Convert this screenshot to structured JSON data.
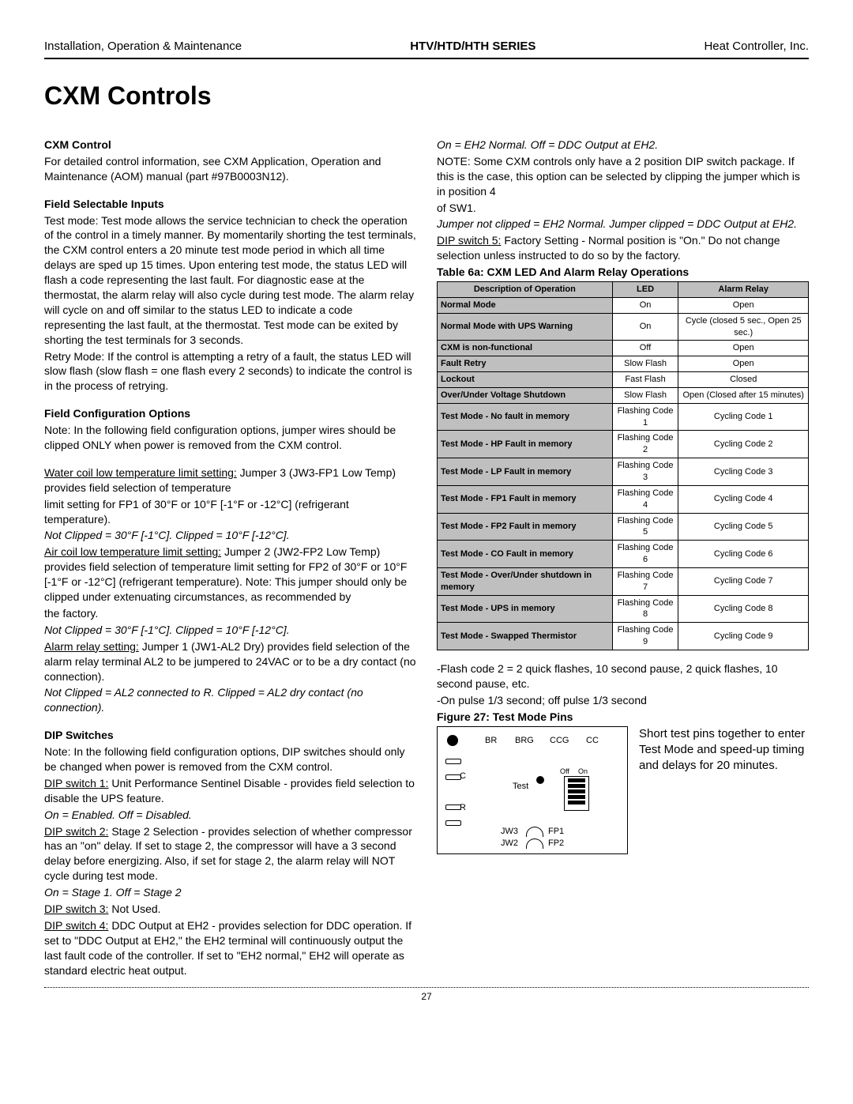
{
  "header": {
    "left": "Installation, Operation & Maintenance",
    "center": "HTV/HTD/HTH SERIES",
    "right": "Heat Controller, Inc."
  },
  "title": "CXM Controls",
  "left_col": {
    "h_cxm": "CXM Control",
    "p_cxm": "For detailed control information, see CXM Application, Operation and Maintenance (AOM) manual (part #97B0003N12).",
    "h_fsi": "Field Selectable Inputs",
    "p_fsi1": "Test mode: Test mode allows the service technician to check the operation of the control in a timely manner. By momentarily shorting the test terminals, the CXM control enters a 20 minute test mode period in which all time delays are sped up 15 times. Upon entering test mode, the status LED will flash a code representing the last fault. For diagnostic ease at the thermostat, the alarm relay will also cycle during test mode. The alarm relay will cycle on and off similar to the status LED to indicate a code representing the last fault, at the thermostat. Test mode can be exited by shorting the test terminals for 3 seconds.",
    "p_fsi2": "Retry Mode: If the control is attempting a retry of a fault, the status LED will slow flash (slow flash = one flash every 2 seconds) to indicate the control is in the process of retrying.",
    "h_fco": "Field Configuration Options",
    "p_fco_note": "Note: In the following field configuration options, jumper wires should be clipped ONLY when power is removed from the CXM control.",
    "p_water_u": "Water coil low temperature limit setting:",
    "p_water_rest": " Jumper 3 (JW3-FP1 Low Temp) provides field selection of temperature",
    "p_water2": "limit setting for FP1 of 30°F or 10°F [-1°F or -12°C] (refrigerant temperature).",
    "p_water_i": "Not Clipped = 30°F [-1°C]. Clipped = 10°F [-12°C].",
    "p_air_u": "Air coil low temperature limit setting:",
    "p_air_rest": " Jumper 2 (JW2-FP2 Low Temp) provides field selection of temperature limit setting for FP2 of 30°F or 10°F [-1°F or -12°C] (refrigerant temperature). Note: This jumper should only be clipped under extenuating circumstances, as recommended by",
    "p_air_fac": "the factory.",
    "p_air_i": "Not Clipped = 30°F [-1°C]. Clipped = 10°F [-12°C].",
    "p_alarm_u": "Alarm relay setting:",
    "p_alarm_rest": " Jumper 1 (JW1-AL2 Dry) provides field selection of the alarm relay terminal AL2 to be jumpered to 24VAC or to be a dry contact (no connection).",
    "p_alarm_i": "Not Clipped = AL2 connected to R. Clipped = AL2 dry contact (no connection).",
    "h_dip": "DIP Switches",
    "p_dip_note": "Note: In the following field configuration options, DIP switches should only be changed when power is removed from the CXM control.",
    "p_dip1_u": "DIP switch 1:",
    "p_dip1_rest": " Unit Performance Sentinel Disable - provides field selection to disable the UPS feature.",
    "p_dip1_i": "On = Enabled. Off = Disabled.",
    "p_dip2_u": "DIP switch 2:",
    "p_dip2_rest": " Stage 2 Selection - provides selection of whether compressor has an \"on\" delay. If set to stage 2, the compressor will have a 3 second delay before energizing. Also, if set for stage 2, the alarm relay will NOT cycle during test mode.",
    "p_dip2_i": "On = Stage 1. Off = Stage 2",
    "p_dip3_u": "DIP switch 3:",
    "p_dip3_rest": " Not Used.",
    "p_dip4_u": "DIP switch 4:",
    "p_dip4_rest": " DDC Output at EH2 - provides selection for DDC operation. If set to \"DDC Output at EH2,\" the EH2 terminal will continuously output the last fault code of the controller. If set to \"EH2 normal,\" EH2 will operate as standard electric heat output."
  },
  "right_col": {
    "p_on_i": "On = EH2 Normal. Off = DDC Output at EH2.",
    "p_note": "NOTE: Some CXM controls only have a 2 position DIP switch package. If this is the case, this option can be selected by clipping the jumper which is in position 4",
    "p_sw1": "of SW1.",
    "p_jumper_i": "Jumper not clipped = EH2 Normal. Jumper clipped = DDC Output at EH2.",
    "p_dip5_u": "DIP switch 5:",
    "p_dip5_rest": " Factory Setting - Normal position is \"On.\" Do not change selection unless instructed to do so by  the factory.",
    "table_title": "Table 6a: CXM LED And Alarm Relay Operations",
    "table": {
      "headers": [
        "Description of Operation",
        "LED",
        "Alarm Relay"
      ],
      "rows": [
        [
          "Normal Mode",
          "On",
          "Open"
        ],
        [
          "Normal Mode with UPS Warning",
          "On",
          "Cycle (closed 5 sec., Open 25 sec.)"
        ],
        [
          "CXM is non-functional",
          "Off",
          "Open"
        ],
        [
          "Fault Retry",
          "Slow Flash",
          "Open"
        ],
        [
          "Lockout",
          "Fast Flash",
          "Closed"
        ],
        [
          "Over/Under Voltage Shutdown",
          "Slow Flash",
          "Open (Closed after 15 minutes)"
        ],
        [
          "Test Mode - No fault in memory",
          "Flashing Code 1",
          "Cycling Code 1"
        ],
        [
          "Test Mode - HP Fault in memory",
          "Flashing Code 2",
          "Cycling Code 2"
        ],
        [
          "Test Mode - LP Fault in memory",
          "Flashing Code 3",
          "Cycling Code 3"
        ],
        [
          "Test Mode - FP1 Fault in memory",
          "Flashing Code 4",
          "Cycling Code 4"
        ],
        [
          "Test Mode - FP2 Fault in memory",
          "Flashing Code 5",
          "Cycling Code 5"
        ],
        [
          "Test Mode - CO Fault in memory",
          "Flashing Code 6",
          "Cycling Code 6"
        ],
        [
          "Test Mode - Over/Under shutdown in memory",
          "Flashing Code 7",
          "Cycling Code 7"
        ],
        [
          "Test Mode - UPS in memory",
          "Flashing Code 8",
          "Cycling Code 8"
        ],
        [
          "Test Mode - Swapped Thermistor",
          "Flashing Code 9",
          "Cycling Code 9"
        ]
      ]
    },
    "p_flash": "-Flash code 2 = 2 quick flashes, 10 second pause, 2 quick  flashes, 10 second pause, etc.",
    "p_onpulse": "-On pulse 1/3 second; off pulse 1/3 second",
    "fig_title": "Figure 27: Test Mode Pins",
    "fig_labels": {
      "BR": "BR",
      "BRG": "BRG",
      "CCG": "CCG",
      "CC": "CC",
      "C": "C",
      "R": "R",
      "Test": "Test",
      "Off": "Off",
      "On": "On",
      "JW3": "JW3",
      "JW2": "JW2",
      "FP1": "FP1",
      "FP2": "FP2"
    },
    "p_short": "Short test pins together to enter Test Mode and speed-up timing and delays for 20 minutes."
  },
  "page_number": "27"
}
